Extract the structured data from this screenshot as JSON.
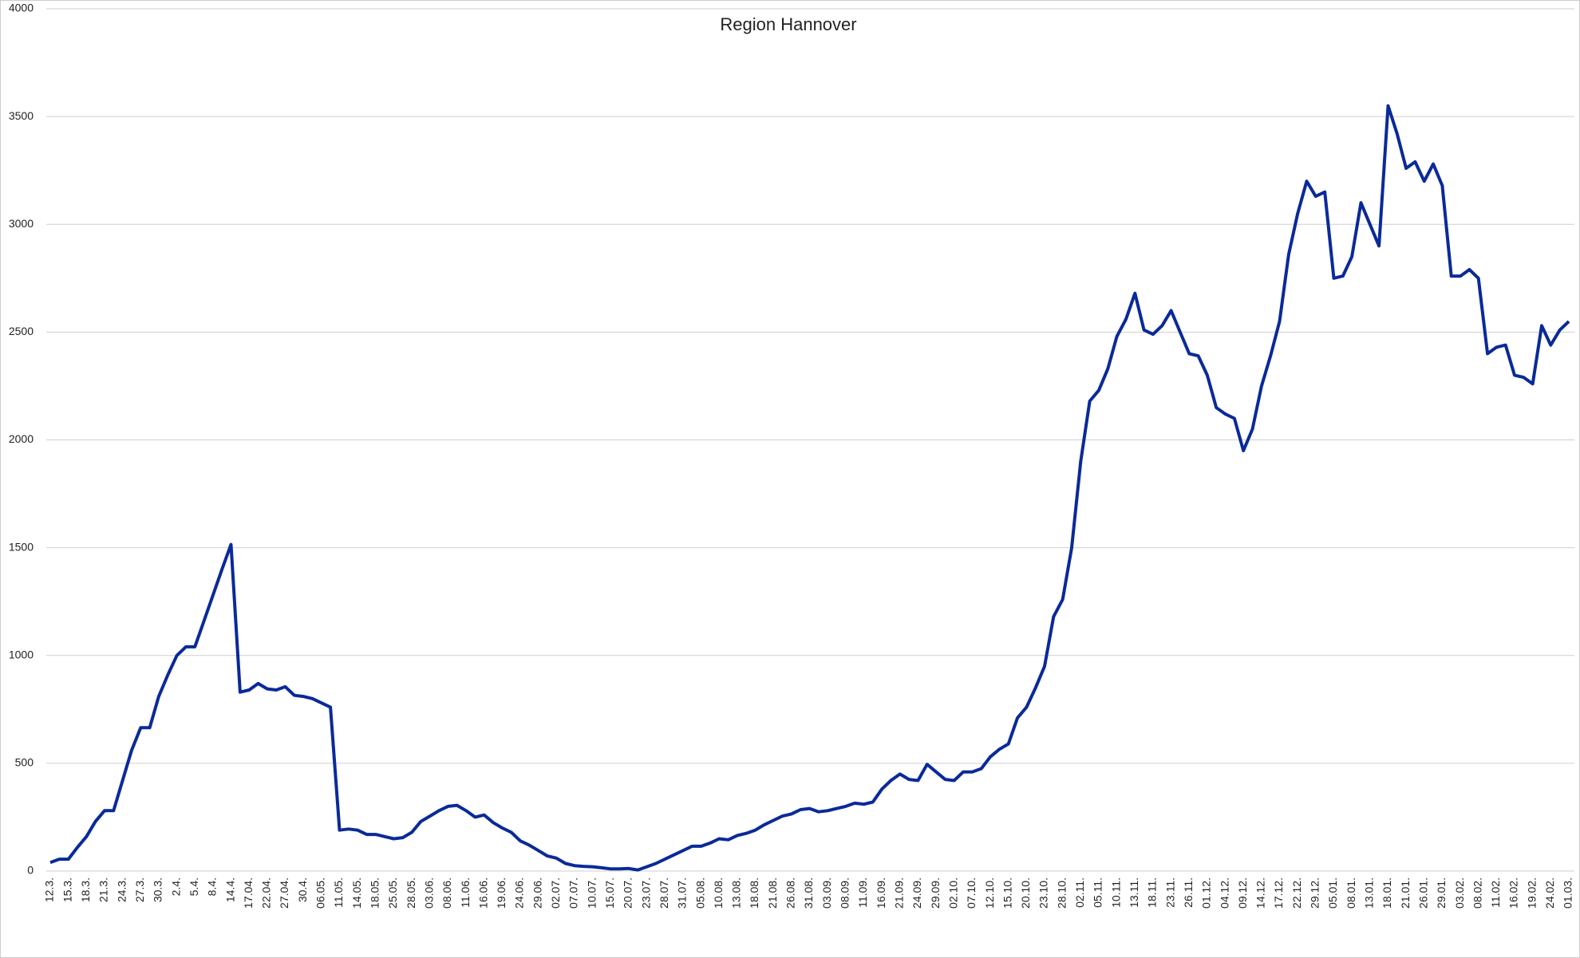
{
  "chart_data": {
    "type": "line",
    "title": "Region Hannover",
    "categories": [
      "12.3.",
      null,
      "15.3.",
      null,
      "18.3.",
      null,
      "21.3.",
      null,
      "24.3.",
      null,
      "27.3.",
      null,
      "30.3.",
      null,
      "2.4.",
      null,
      "5.4.",
      null,
      "8.4.",
      null,
      "14.4.",
      null,
      "17.04.",
      null,
      "22.04.",
      null,
      "27.04.",
      null,
      "30.4.",
      null,
      "06.05.",
      null,
      "11.05.",
      null,
      "14.05.",
      null,
      "18.05.",
      null,
      "25.05.",
      null,
      "28.05.",
      null,
      "03.06.",
      null,
      "08.06.",
      null,
      "11.06.",
      null,
      "16.06.",
      null,
      "19.06.",
      null,
      "24.06.",
      null,
      "29.06.",
      null,
      "02.07.",
      null,
      "07.07.",
      null,
      "10.07.",
      null,
      "15.07.",
      null,
      "20.07.",
      null,
      "23.07.",
      null,
      "28.07.",
      null,
      "31.07.",
      null,
      "05.08.",
      null,
      "10.08.",
      null,
      "13.08.",
      null,
      "18.08.",
      null,
      "21.08.",
      null,
      "26.08.",
      null,
      "31.08.",
      null,
      "03.09.",
      null,
      "08.09.",
      null,
      "11.09.",
      null,
      "16.09.",
      null,
      "21.09.",
      null,
      "24.09.",
      null,
      "29.09.",
      null,
      "02.10.",
      null,
      "07.10.",
      null,
      "12.10.",
      null,
      "15.10.",
      null,
      "20.10.",
      null,
      "23.10.",
      null,
      "28.10.",
      null,
      "02.11.",
      null,
      "05.11.",
      null,
      "10.11.",
      null,
      "13.11.",
      null,
      "18.11.",
      null,
      "23.11.",
      null,
      "26.11.",
      null,
      "01.12.",
      null,
      "04.12.",
      null,
      "09.12.",
      null,
      "14.12.",
      null,
      "17.12.",
      null,
      "22.12.",
      null,
      "29.12.",
      null,
      "05.01.",
      null,
      "08.01.",
      null,
      "13.01.",
      null,
      "18.01.",
      null,
      "21.01.",
      null,
      "26.01.",
      null,
      "29.01.",
      null,
      "03.02.",
      null,
      "08.02.",
      null,
      "11.02.",
      null,
      "16.02.",
      null,
      "19.02.",
      null,
      "24.02.",
      null,
      "01.03."
    ],
    "series": [
      {
        "color": "#0a2a99",
        "values": [
          40,
          55,
          55,
          110,
          160,
          230,
          280,
          280,
          420,
          560,
          665,
          665,
          810,
          910,
          1000,
          1040,
          1040,
          1160,
          1280,
          1400,
          1515,
          830,
          840,
          870,
          845,
          840,
          855,
          815,
          810,
          800,
          780,
          760,
          190,
          195,
          190,
          170,
          170,
          160,
          150,
          155,
          180,
          230,
          255,
          280,
          300,
          305,
          280,
          250,
          260,
          225,
          200,
          180,
          140,
          120,
          95,
          70,
          60,
          35,
          25,
          22,
          20,
          15,
          10,
          10,
          12,
          5,
          20,
          35,
          55,
          75,
          95,
          115,
          115,
          130,
          150,
          145,
          165,
          175,
          190,
          215,
          235,
          255,
          265,
          285,
          290,
          275,
          280,
          290,
          300,
          315,
          310,
          320,
          380,
          420,
          450,
          425,
          420,
          495,
          460,
          425,
          420,
          460,
          460,
          475,
          530,
          565,
          590,
          710,
          760,
          850,
          950,
          1180,
          1260,
          1500,
          1900,
          2180,
          2230,
          2330,
          2480,
          2560,
          2680,
          2510,
          2490,
          2530,
          2600,
          2500,
          2400,
          2390,
          2300,
          2150,
          2120,
          2100,
          1950,
          2050,
          2250,
          2390,
          2550,
          2860,
          3050,
          3200,
          3130,
          3150,
          2750,
          2760,
          2850,
          3100,
          3000,
          2900,
          3550,
          3420,
          3260,
          3290,
          3200,
          3280,
          3180,
          2760,
          2760,
          2790,
          2750,
          2400,
          2430,
          2440,
          2300,
          2290,
          2260,
          2530,
          2440,
          2510,
          2550
        ]
      }
    ],
    "ylim": [
      0,
      4000
    ],
    "yticks": [
      0,
      500,
      1000,
      1500,
      2000,
      2500,
      3000,
      3500,
      4000
    ],
    "grid": true
  }
}
